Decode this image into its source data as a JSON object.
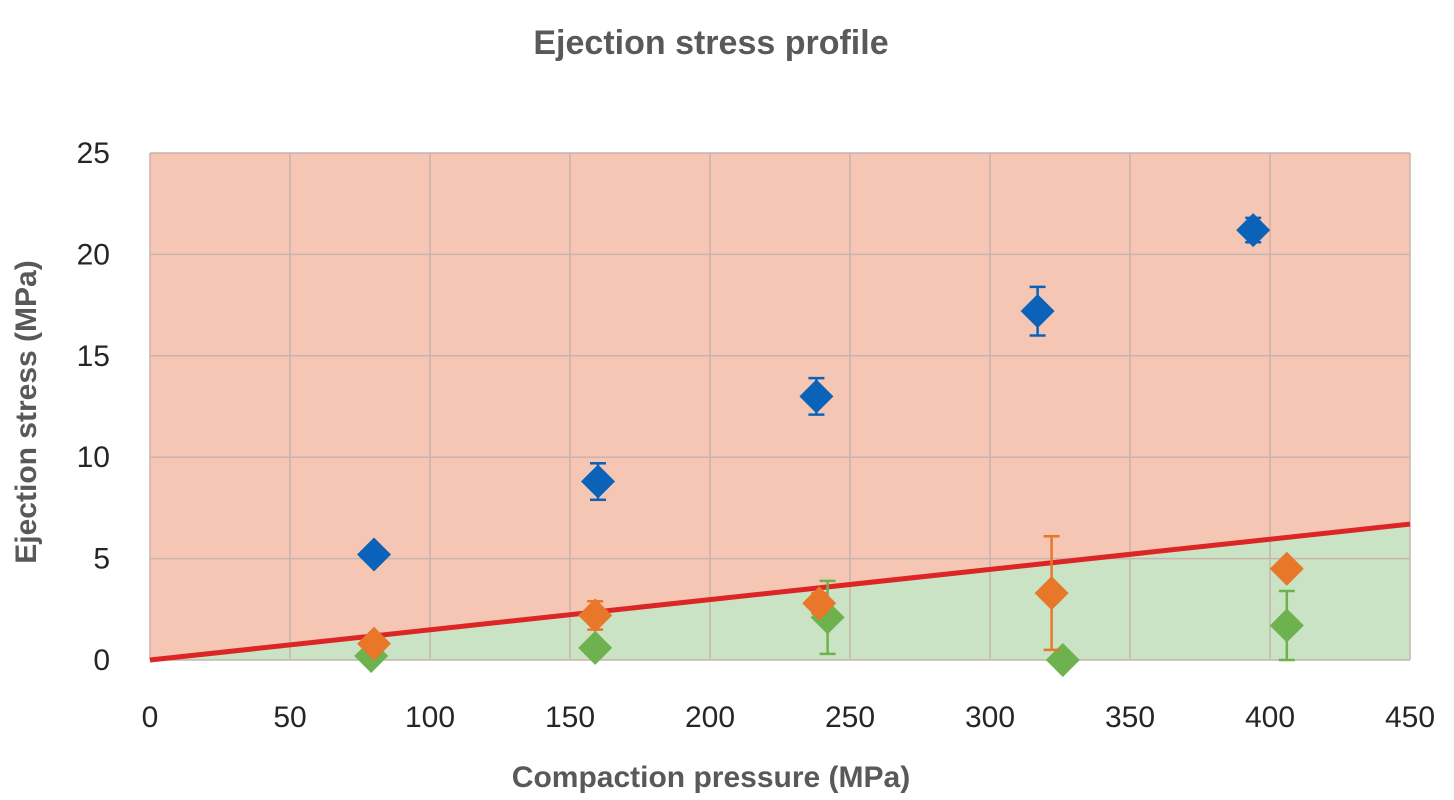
{
  "chart_data": {
    "type": "scatter",
    "title": "Ejection stress profile",
    "xlabel": "Compaction pressure (MPa)",
    "ylabel": "Ejection stress (MPa)",
    "xlim": [
      0,
      450
    ],
    "ylim": [
      0,
      25
    ],
    "x_ticks": [
      "0",
      "50",
      "100",
      "150",
      "200",
      "250",
      "300",
      "350",
      "400",
      "450"
    ],
    "y_ticks": [
      "0",
      "5",
      "10",
      "15",
      "20",
      "25"
    ],
    "grid": true,
    "legend": "none",
    "regions": [
      {
        "color": "#f5c6b3",
        "position": "above threshold line"
      },
      {
        "color": "#c9e3c4",
        "position": "below threshold line"
      }
    ],
    "threshold_line": {
      "color": "#dc2626",
      "x": [
        0,
        450
      ],
      "y": [
        0,
        6.7
      ]
    },
    "series": [
      {
        "color": "#0a63b8",
        "points": [
          {
            "x": 80,
            "y": 5.2,
            "err": 0
          },
          {
            "x": 160,
            "y": 8.8,
            "err": 0.9
          },
          {
            "x": 238,
            "y": 13.0,
            "err": 0.9
          },
          {
            "x": 317,
            "y": 17.2,
            "err": 1.2
          },
          {
            "x": 394,
            "y": 21.2,
            "err": 0.6
          }
        ]
      },
      {
        "color": "#e8772a",
        "points": [
          {
            "x": 80,
            "y": 0.8,
            "err": 0
          },
          {
            "x": 159,
            "y": 2.2,
            "err": 0.7
          },
          {
            "x": 239,
            "y": 2.8,
            "err": 0.5
          },
          {
            "x": 322,
            "y": 3.3,
            "err": 2.8
          },
          {
            "x": 406,
            "y": 4.5,
            "err": 0
          }
        ]
      },
      {
        "color": "#6eb24f",
        "points": [
          {
            "x": 79,
            "y": 0.2,
            "err": 0
          },
          {
            "x": 159,
            "y": 0.6,
            "err": 0
          },
          {
            "x": 242,
            "y": 2.1,
            "err": 1.8
          },
          {
            "x": 326,
            "y": 0.0,
            "err": 0
          },
          {
            "x": 406,
            "y": 1.7,
            "err": 1.7
          }
        ]
      }
    ]
  }
}
